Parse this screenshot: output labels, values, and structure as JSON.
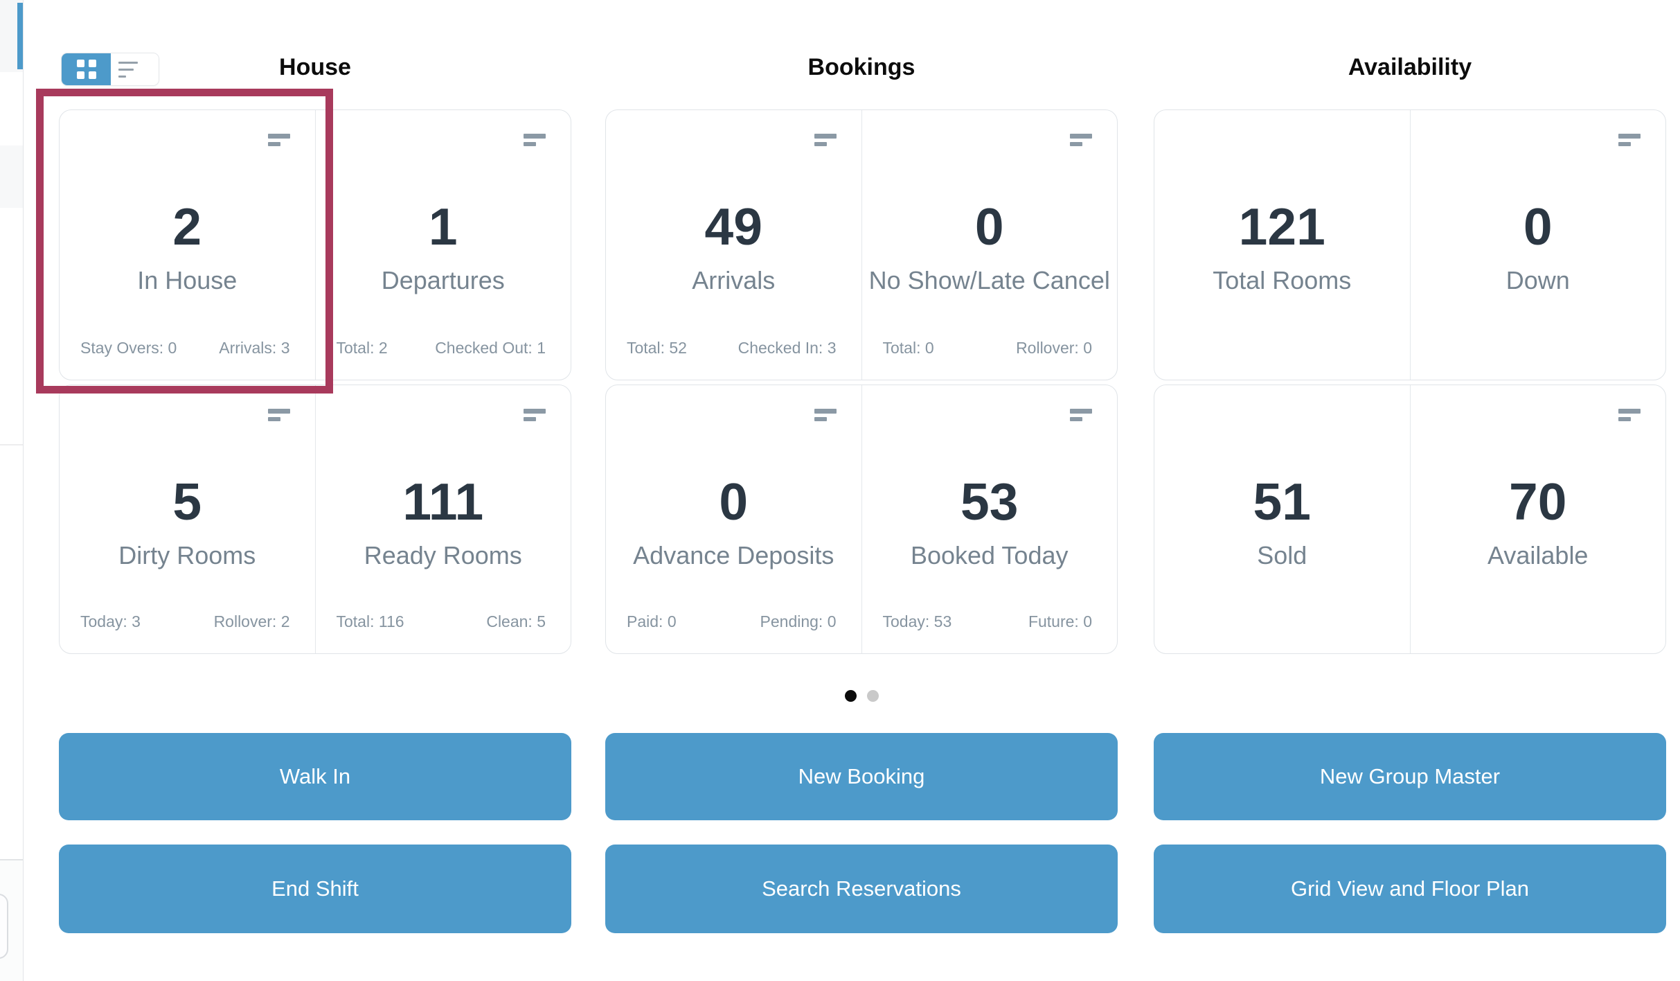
{
  "view_toggle": {
    "options": [
      "grid",
      "list"
    ],
    "selected": "grid"
  },
  "sections": [
    {
      "title": "House",
      "cards": [
        {
          "value": "2",
          "label": "In House",
          "sub_left": "Stay Overs: 0",
          "sub_right": "Arrivals: 3"
        },
        {
          "value": "1",
          "label": "Departures",
          "sub_left": "Total: 2",
          "sub_right": "Checked Out: 1"
        },
        {
          "value": "5",
          "label": "Dirty Rooms",
          "sub_left": "Today: 3",
          "sub_right": "Rollover: 2"
        },
        {
          "value": "111",
          "label": "Ready Rooms",
          "sub_left": "Total: 116",
          "sub_right": "Clean: 5"
        }
      ],
      "buttons": [
        "Walk In",
        "End Shift"
      ]
    },
    {
      "title": "Bookings",
      "cards": [
        {
          "value": "49",
          "label": "Arrivals",
          "sub_left": "Total: 52",
          "sub_right": "Checked In: 3"
        },
        {
          "value": "0",
          "label": "No Show/Late Cancel",
          "sub_left": "Total: 0",
          "sub_right": "Rollover: 0"
        },
        {
          "value": "0",
          "label": "Advance Deposits",
          "sub_left": "Paid: 0",
          "sub_right": "Pending: 0"
        },
        {
          "value": "53",
          "label": "Booked Today",
          "sub_left": "Today: 53",
          "sub_right": "Future: 0"
        }
      ],
      "buttons": [
        "New Booking",
        "Search Reservations"
      ]
    },
    {
      "title": "Availability",
      "cards": [
        {
          "value": "121",
          "label": "Total Rooms"
        },
        {
          "value": "0",
          "label": "Down"
        },
        {
          "value": "51",
          "label": "Sold"
        },
        {
          "value": "70",
          "label": "Available"
        }
      ],
      "buttons": [
        "New Group Master",
        "Grid View and Floor Plan"
      ]
    }
  ],
  "pagination": {
    "dot_count": 2,
    "active_index": 0
  },
  "annotation": {
    "type": "highlight-box",
    "target_card": "In House",
    "color": "#a83a5c"
  },
  "icons": {
    "grid_view": "grid-view-icon",
    "list_view": "list-view-icon",
    "card_stats": "stats-bars-icon"
  },
  "colors": {
    "accent_blue": "#4d9aca",
    "highlight": "#a83a5c",
    "number_text": "#2b3743",
    "label_text": "#75838f",
    "substat_text": "#8694a0",
    "panel_border": "#e0e4e8",
    "dot_active": "#0b0b0b",
    "dot_inactive": "#c9c9c9"
  }
}
